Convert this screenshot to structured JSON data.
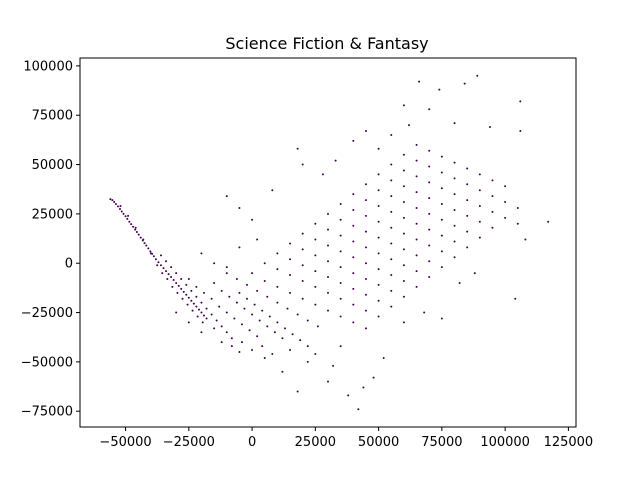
{
  "chart_data": {
    "type": "scatter",
    "title": "Science Fiction & Fantasy",
    "xlabel": "",
    "ylabel": "",
    "xlim": [
      -68000,
      128000
    ],
    "ylim": [
      -83000,
      104000
    ],
    "x_ticks": [
      -50000,
      -25000,
      0,
      25000,
      50000,
      75000,
      100000,
      125000
    ],
    "x_tick_labels": [
      "−50000",
      "−25000",
      "0",
      "25000",
      "50000",
      "75000",
      "100000",
      "125000"
    ],
    "y_ticks": [
      -75000,
      -50000,
      -25000,
      0,
      25000,
      50000,
      75000,
      100000
    ],
    "y_tick_labels": [
      "−75000",
      "−50000",
      "−25000",
      "0",
      "25000",
      "50000",
      "75000",
      "100000"
    ],
    "grid": false,
    "point_color": "#440154",
    "points": [
      [
        -56000,
        32500
      ],
      [
        -55200,
        32000
      ],
      [
        -54500,
        31000
      ],
      [
        -53800,
        30000
      ],
      [
        -53000,
        28800
      ],
      [
        -52200,
        27500
      ],
      [
        -51500,
        26200
      ],
      [
        -50800,
        25000
      ],
      [
        -50000,
        23800
      ],
      [
        -49300,
        22500
      ],
      [
        -48500,
        21000
      ],
      [
        -47800,
        19800
      ],
      [
        -47000,
        18500
      ],
      [
        -46200,
        17000
      ],
      [
        -45500,
        15800
      ],
      [
        -44800,
        14500
      ],
      [
        -44000,
        13000
      ],
      [
        -43200,
        11500
      ],
      [
        -42500,
        10200
      ],
      [
        -41800,
        9000
      ],
      [
        -41000,
        7500
      ],
      [
        -40200,
        6000
      ],
      [
        -39500,
        4800
      ],
      [
        -38800,
        3500
      ],
      [
        -38000,
        2000
      ],
      [
        -37000,
        500
      ],
      [
        -36000,
        -1000
      ],
      [
        -35000,
        -2500
      ],
      [
        -34000,
        -4000
      ],
      [
        -33000,
        -5500
      ],
      [
        -32000,
        -7000
      ],
      [
        -31000,
        -8500
      ],
      [
        -30000,
        -10000
      ],
      [
        -29000,
        -11500
      ],
      [
        -28000,
        -13000
      ],
      [
        -27000,
        -14500
      ],
      [
        -26000,
        -16000
      ],
      [
        -25000,
        -17500
      ],
      [
        -24000,
        -19000
      ],
      [
        -23000,
        -20500
      ],
      [
        -22000,
        -22000
      ],
      [
        -21000,
        -23500
      ],
      [
        -20000,
        -25000
      ],
      [
        -19000,
        -26500
      ],
      [
        -18000,
        -28000
      ],
      [
        -52000,
        29000
      ],
      [
        -49000,
        24000
      ],
      [
        -46000,
        18000
      ],
      [
        -43000,
        12000
      ],
      [
        -40000,
        5000
      ],
      [
        -37500,
        -1000
      ],
      [
        -35500,
        -5000
      ],
      [
        -33500,
        -8000
      ],
      [
        -31500,
        -12000
      ],
      [
        -29500,
        -15000
      ],
      [
        -27500,
        -18000
      ],
      [
        -25500,
        -21000
      ],
      [
        -23500,
        -24000
      ],
      [
        -21500,
        -27000
      ],
      [
        -19500,
        -30000
      ],
      [
        -36000,
        4000
      ],
      [
        -34000,
        1000
      ],
      [
        -32000,
        -2000
      ],
      [
        -30000,
        -5000
      ],
      [
        -28000,
        -8000
      ],
      [
        -26000,
        -11000
      ],
      [
        -24000,
        -14000
      ],
      [
        -22000,
        -17000
      ],
      [
        -20000,
        -20000
      ],
      [
        -18000,
        -23000
      ],
      [
        -16000,
        -26000
      ],
      [
        -14000,
        -29000
      ],
      [
        -12000,
        -32000
      ],
      [
        -10000,
        -35000
      ],
      [
        -8000,
        -38000
      ],
      [
        -25000,
        -8000
      ],
      [
        -22000,
        -12000
      ],
      [
        -19000,
        -15000
      ],
      [
        -16000,
        -18000
      ],
      [
        -13000,
        -22000
      ],
      [
        -10000,
        -25000
      ],
      [
        -7000,
        -28000
      ],
      [
        -4000,
        -31000
      ],
      [
        -1000,
        -34000
      ],
      [
        2000,
        -37000
      ],
      [
        -15000,
        -10000
      ],
      [
        -12000,
        -14000
      ],
      [
        -9000,
        -17000
      ],
      [
        -6000,
        -20000
      ],
      [
        -3000,
        -23000
      ],
      [
        0,
        -26000
      ],
      [
        3000,
        -29000
      ],
      [
        6000,
        -32000
      ],
      [
        9000,
        -35000
      ],
      [
        12000,
        -38000
      ],
      [
        -5000,
        -15000
      ],
      [
        -2000,
        -18000
      ],
      [
        1000,
        -21000
      ],
      [
        4000,
        -24000
      ],
      [
        7000,
        -27000
      ],
      [
        10000,
        -30000
      ],
      [
        13000,
        -33000
      ],
      [
        16000,
        -36000
      ],
      [
        19000,
        -39000
      ],
      [
        22000,
        -42000
      ],
      [
        -10000,
        -5000
      ],
      [
        -6000,
        -8000
      ],
      [
        -2000,
        -11000
      ],
      [
        2000,
        -14000
      ],
      [
        6000,
        -17000
      ],
      [
        10000,
        -20000
      ],
      [
        14000,
        -23000
      ],
      [
        18000,
        -26000
      ],
      [
        22000,
        -29000
      ],
      [
        26000,
        -32000
      ],
      [
        0,
        -5000
      ],
      [
        5000,
        -9000
      ],
      [
        10000,
        -12000
      ],
      [
        15000,
        -15000
      ],
      [
        20000,
        -18000
      ],
      [
        25000,
        -21000
      ],
      [
        30000,
        -24000
      ],
      [
        35000,
        -27000
      ],
      [
        40000,
        -30000
      ],
      [
        45000,
        -33000
      ],
      [
        5000,
        0
      ],
      [
        10000,
        -3000
      ],
      [
        15000,
        -6000
      ],
      [
        20000,
        -9000
      ],
      [
        25000,
        -12000
      ],
      [
        30000,
        -15000
      ],
      [
        35000,
        -18000
      ],
      [
        40000,
        -21000
      ],
      [
        45000,
        -24000
      ],
      [
        50000,
        -27000
      ],
      [
        10000,
        5000
      ],
      [
        15000,
        2000
      ],
      [
        20000,
        -1000
      ],
      [
        25000,
        -4000
      ],
      [
        30000,
        -7000
      ],
      [
        35000,
        -10000
      ],
      [
        40000,
        -13000
      ],
      [
        45000,
        -16000
      ],
      [
        50000,
        -19000
      ],
      [
        55000,
        -22000
      ],
      [
        15000,
        10000
      ],
      [
        20000,
        7000
      ],
      [
        25000,
        4000
      ],
      [
        30000,
        1000
      ],
      [
        35000,
        -2000
      ],
      [
        40000,
        -5000
      ],
      [
        45000,
        -8000
      ],
      [
        50000,
        -11000
      ],
      [
        55000,
        -14000
      ],
      [
        60000,
        -17000
      ],
      [
        20000,
        15000
      ],
      [
        25000,
        12000
      ],
      [
        30000,
        9000
      ],
      [
        35000,
        6000
      ],
      [
        40000,
        3000
      ],
      [
        45000,
        0
      ],
      [
        50000,
        -3000
      ],
      [
        55000,
        -6000
      ],
      [
        60000,
        -9000
      ],
      [
        65000,
        -12000
      ],
      [
        25000,
        20000
      ],
      [
        30000,
        17000
      ],
      [
        35000,
        14000
      ],
      [
        40000,
        11000
      ],
      [
        45000,
        8000
      ],
      [
        50000,
        5000
      ],
      [
        55000,
        2000
      ],
      [
        60000,
        -1000
      ],
      [
        65000,
        -4000
      ],
      [
        70000,
        -7000
      ],
      [
        30000,
        25000
      ],
      [
        35000,
        22000
      ],
      [
        40000,
        19000
      ],
      [
        45000,
        16000
      ],
      [
        50000,
        13000
      ],
      [
        55000,
        10000
      ],
      [
        60000,
        7000
      ],
      [
        65000,
        4000
      ],
      [
        70000,
        1000
      ],
      [
        75000,
        -2000
      ],
      [
        35000,
        30000
      ],
      [
        40000,
        27000
      ],
      [
        45000,
        24000
      ],
      [
        50000,
        21000
      ],
      [
        55000,
        18000
      ],
      [
        60000,
        15000
      ],
      [
        65000,
        12000
      ],
      [
        70000,
        9000
      ],
      [
        75000,
        6000
      ],
      [
        80000,
        3000
      ],
      [
        40000,
        35000
      ],
      [
        45000,
        32000
      ],
      [
        50000,
        29000
      ],
      [
        55000,
        26000
      ],
      [
        60000,
        23000
      ],
      [
        65000,
        20000
      ],
      [
        70000,
        17000
      ],
      [
        75000,
        14000
      ],
      [
        80000,
        11000
      ],
      [
        85000,
        8000
      ],
      [
        45000,
        40000
      ],
      [
        50000,
        37000
      ],
      [
        55000,
        34000
      ],
      [
        60000,
        31000
      ],
      [
        65000,
        28000
      ],
      [
        70000,
        25000
      ],
      [
        75000,
        22000
      ],
      [
        80000,
        19000
      ],
      [
        85000,
        16000
      ],
      [
        90000,
        13000
      ],
      [
        50000,
        45000
      ],
      [
        55000,
        42000
      ],
      [
        60000,
        39000
      ],
      [
        65000,
        36000
      ],
      [
        70000,
        33000
      ],
      [
        75000,
        30000
      ],
      [
        80000,
        27000
      ],
      [
        85000,
        24000
      ],
      [
        90000,
        21000
      ],
      [
        95000,
        18000
      ],
      [
        55000,
        50000
      ],
      [
        60000,
        47000
      ],
      [
        65000,
        44000
      ],
      [
        70000,
        41000
      ],
      [
        75000,
        38000
      ],
      [
        80000,
        35000
      ],
      [
        85000,
        32000
      ],
      [
        90000,
        29000
      ],
      [
        95000,
        26000
      ],
      [
        100000,
        23000
      ],
      [
        60000,
        55000
      ],
      [
        65000,
        52000
      ],
      [
        70000,
        49000
      ],
      [
        75000,
        46000
      ],
      [
        80000,
        43000
      ],
      [
        85000,
        40000
      ],
      [
        90000,
        37000
      ],
      [
        95000,
        34000
      ],
      [
        100000,
        31000
      ],
      [
        105000,
        28000
      ],
      [
        65000,
        60000
      ],
      [
        70000,
        57000
      ],
      [
        75000,
        54000
      ],
      [
        80000,
        51000
      ],
      [
        85000,
        48000
      ],
      [
        90000,
        45000
      ],
      [
        95000,
        42000
      ],
      [
        100000,
        39000
      ],
      [
        105000,
        20000
      ],
      [
        108000,
        12000
      ],
      [
        18000,
        -65000
      ],
      [
        30000,
        -60000
      ],
      [
        38000,
        -67000
      ],
      [
        42000,
        -74000
      ],
      [
        48000,
        -58000
      ],
      [
        12000,
        -55000
      ],
      [
        22000,
        -50000
      ],
      [
        32000,
        -52000
      ],
      [
        44000,
        -63000
      ],
      [
        52000,
        -48000
      ],
      [
        -5000,
        -45000
      ],
      [
        5000,
        -48000
      ],
      [
        15000,
        -44000
      ],
      [
        25000,
        -46000
      ],
      [
        35000,
        -42000
      ],
      [
        60000,
        -30000
      ],
      [
        68000,
        -25000
      ],
      [
        75000,
        -28000
      ],
      [
        82000,
        -10000
      ],
      [
        88000,
        -5000
      ],
      [
        66000,
        92000
      ],
      [
        74000,
        88000
      ],
      [
        84000,
        91000
      ],
      [
        89000,
        95000
      ],
      [
        106000,
        82000
      ],
      [
        70000,
        78000
      ],
      [
        60000,
        80000
      ],
      [
        80000,
        71000
      ],
      [
        94000,
        69000
      ],
      [
        106000,
        67000
      ],
      [
        40000,
        62000
      ],
      [
        45000,
        67000
      ],
      [
        50000,
        58000
      ],
      [
        55000,
        65000
      ],
      [
        62000,
        70000
      ],
      [
        -10000,
        34000
      ],
      [
        -5000,
        28000
      ],
      [
        0,
        22000
      ],
      [
        8000,
        37000
      ],
      [
        20000,
        50000
      ],
      [
        18000,
        58000
      ],
      [
        28000,
        45000
      ],
      [
        33000,
        52000
      ],
      [
        117000,
        21000
      ],
      [
        104000,
        -18000
      ],
      [
        -20000,
        5000
      ],
      [
        -15000,
        0
      ],
      [
        -10000,
        -2000
      ],
      [
        -5000,
        8000
      ],
      [
        2000,
        12000
      ],
      [
        -30000,
        -25000
      ],
      [
        -25000,
        -30000
      ],
      [
        -20000,
        -35000
      ],
      [
        -15000,
        -33000
      ],
      [
        -12000,
        -40000
      ],
      [
        -8000,
        -42000
      ],
      [
        -4000,
        -40000
      ],
      [
        0,
        -44000
      ],
      [
        4000,
        -42000
      ],
      [
        8000,
        -46000
      ]
    ]
  }
}
